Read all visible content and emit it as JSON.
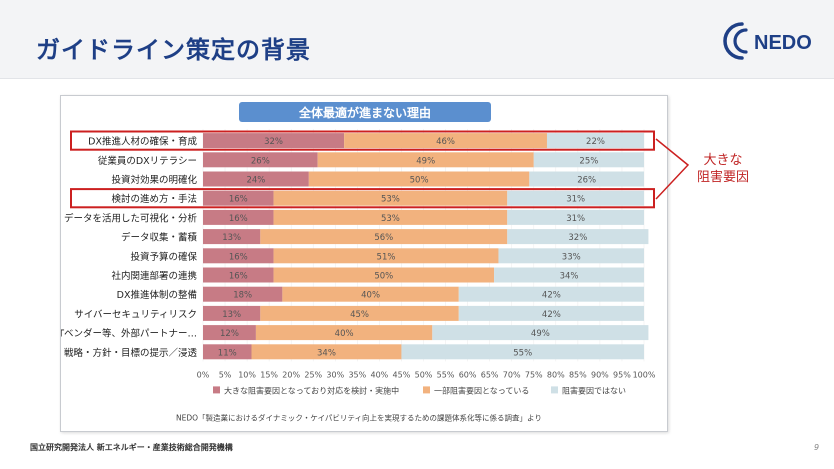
{
  "slide": {
    "title": "ガイドライン策定の背景",
    "logo_text": "NEDO",
    "footer_org": "国立研究開発法人 新エネルギー・産業技術総合開発機構",
    "page_number": "9",
    "callout_lines": [
      "大きな",
      "阻害要因"
    ]
  },
  "colors": {
    "title": "#1e3f86",
    "series1": "#c77b85",
    "series2": "#f2b27e",
    "series3": "#cfe0e6",
    "highlight": "#cc2020",
    "chart_title_bg": "#5b8fcf"
  },
  "chart_data": {
    "type": "bar",
    "orientation": "horizontal",
    "stacked": true,
    "title": "全体最適が進まない理由",
    "categories": [
      "DX推進人材の確保・育成",
      "従業員のDXリテラシー",
      "投資対効果の明確化",
      "検討の進め方・手法",
      "データを活用した可視化・分析",
      "データ収集・蓄積",
      "投資予算の確保",
      "社内関連部署の連携",
      "DX推進体制の整備",
      "サイバーセキュリティリスク",
      "ITベンダー等、外部パートナー…",
      "戦略・方針・目標の提示／浸透"
    ],
    "series": [
      {
        "name": "大きな阻害要因となっており対応を検討・実施中",
        "values": [
          32,
          26,
          24,
          16,
          16,
          13,
          16,
          16,
          18,
          13,
          12,
          11
        ]
      },
      {
        "name": "一部阻害要因となっている",
        "values": [
          46,
          49,
          50,
          53,
          53,
          56,
          51,
          50,
          40,
          45,
          40,
          34
        ]
      },
      {
        "name": "阻害要因ではない",
        "values": [
          22,
          25,
          26,
          31,
          31,
          32,
          33,
          34,
          42,
          42,
          49,
          55
        ]
      }
    ],
    "xlim": [
      0,
      100
    ],
    "xticks": [
      "0%",
      "5%",
      "10%",
      "15%",
      "20%",
      "25%",
      "30%",
      "35%",
      "40%",
      "45%",
      "50%",
      "55%",
      "60%",
      "65%",
      "70%",
      "75%",
      "80%",
      "85%",
      "90%",
      "95%",
      "100%"
    ],
    "highlighted_categories": [
      "DX推進人材の確保・育成",
      "検討の進め方・手法"
    ],
    "legend_position": "bottom",
    "source": "NEDO「製造業におけるダイナミック・ケイパビリティ向上を実現するための課題体系化等に係る調査」より"
  }
}
